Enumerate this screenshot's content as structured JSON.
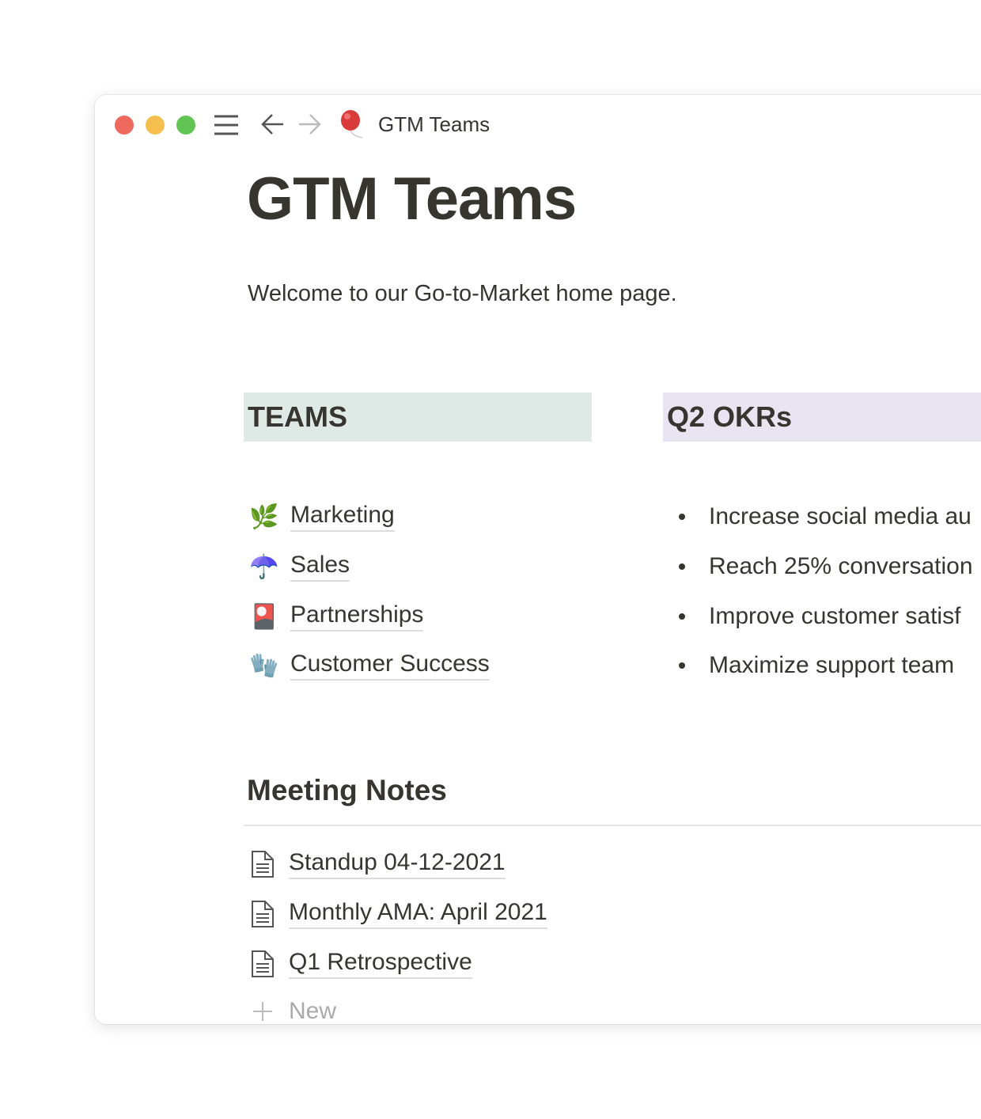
{
  "window": {
    "title": "GTM Teams",
    "page_icon": "balloon-icon",
    "traffic_lights": {
      "close": "#ee6a5f",
      "minimize": "#f5bf4f",
      "zoom": "#61c554"
    }
  },
  "page": {
    "title": "GTM Teams",
    "welcome": "Welcome to our Go-to-Market home page."
  },
  "teams": {
    "heading": "TEAMS",
    "heading_bg": "#dfeae7",
    "items": [
      {
        "icon": "🌿",
        "icon_name": "herb-icon",
        "label": "Marketing"
      },
      {
        "icon": "☂️",
        "icon_name": "umbrella-icon",
        "label": "Sales"
      },
      {
        "icon": "🎴",
        "icon_name": "flower-playing-card-icon",
        "label": "Partnerships"
      },
      {
        "icon": "🧤",
        "icon_name": "gloves-icon",
        "label": "Customer Success"
      }
    ]
  },
  "okrs": {
    "heading": "Q2 OKRs",
    "heading_bg": "#e8e4f1",
    "items": [
      "Increase social media au",
      "Reach 25% conversation",
      "Improve customer satisf",
      "Maximize support team"
    ]
  },
  "meeting_notes": {
    "heading": "Meeting Notes",
    "items": [
      "Standup 04-12-2021",
      "Monthly AMA: April 2021",
      "Q1 Retrospective"
    ],
    "new_label": "New"
  }
}
